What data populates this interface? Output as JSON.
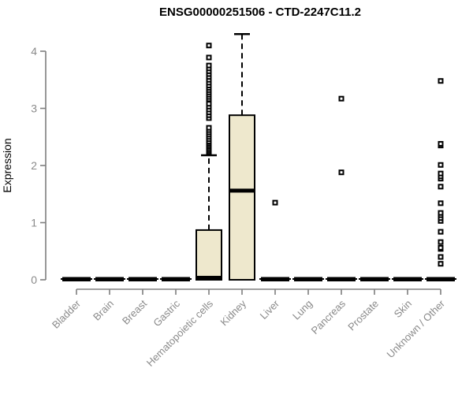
{
  "chart_data": {
    "type": "boxplot",
    "title": "ENSG00000251506 - CTD-2247C11.2",
    "ylabel": "Expression",
    "xlabel": "",
    "ylim": [
      0,
      4
    ],
    "y_ticks": [
      0,
      1,
      2,
      3,
      4
    ],
    "grid": false,
    "legend": "none",
    "categories": [
      "Bladder",
      "Brain",
      "Breast",
      "Gastric",
      "Hematopoietic cells",
      "Kidney",
      "Liver",
      "Lung",
      "Pancreas",
      "Prostate",
      "Skin",
      "Unknown / Other"
    ],
    "boxes": [
      {
        "category": "Bladder",
        "whisker_low": 0,
        "q1": 0,
        "median": 0,
        "q3": 0,
        "whisker_high": 0,
        "outliers": []
      },
      {
        "category": "Brain",
        "whisker_low": 0,
        "q1": 0,
        "median": 0,
        "q3": 0,
        "whisker_high": 0,
        "outliers": []
      },
      {
        "category": "Breast",
        "whisker_low": 0,
        "q1": 0,
        "median": 0,
        "q3": 0,
        "whisker_high": 0,
        "outliers": []
      },
      {
        "category": "Gastric",
        "whisker_low": 0,
        "q1": 0,
        "median": 0,
        "q3": 0,
        "whisker_high": 0,
        "outliers": []
      },
      {
        "category": "Hematopoietic cells",
        "whisker_low": 0,
        "q1": 0,
        "median": 0,
        "q3": 0.87,
        "whisker_high": 2.18,
        "outliers": [
          2.24,
          2.27,
          2.3,
          2.33,
          2.36,
          2.39,
          2.42,
          2.46,
          2.5,
          2.54,
          2.58,
          2.62,
          2.66,
          2.83,
          2.88,
          2.93,
          2.98,
          3.03,
          3.08,
          3.16,
          3.2,
          3.24,
          3.28,
          3.32,
          3.36,
          3.4,
          3.45,
          3.5,
          3.55,
          3.6,
          3.65,
          3.7,
          3.75,
          3.89,
          4.1
        ]
      },
      {
        "category": "Kidney",
        "whisker_low": 0,
        "q1": 0,
        "median": 1.56,
        "q3": 2.88,
        "whisker_high": 4.3,
        "outliers": []
      },
      {
        "category": "Liver",
        "whisker_low": 0,
        "q1": 0,
        "median": 0,
        "q3": 0,
        "whisker_high": 0,
        "outliers": [
          1.35
        ]
      },
      {
        "category": "Lung",
        "whisker_low": 0,
        "q1": 0,
        "median": 0,
        "q3": 0,
        "whisker_high": 0,
        "outliers": []
      },
      {
        "category": "Pancreas",
        "whisker_low": 0,
        "q1": 0,
        "median": 0,
        "q3": 0,
        "whisker_high": 0,
        "outliers": [
          1.88,
          3.17
        ]
      },
      {
        "category": "Prostate",
        "whisker_low": 0,
        "q1": 0,
        "median": 0,
        "q3": 0,
        "whisker_high": 0,
        "outliers": []
      },
      {
        "category": "Skin",
        "whisker_low": 0,
        "q1": 0,
        "median": 0,
        "q3": 0,
        "whisker_high": 0,
        "outliers": []
      },
      {
        "category": "Unknown / Other",
        "whisker_low": 0,
        "q1": 0,
        "median": 0,
        "q3": 0,
        "whisker_high": 0,
        "outliers": [
          0.28,
          0.4,
          0.54,
          0.56,
          0.66,
          0.84,
          1.03,
          1.08,
          1.13,
          1.17,
          1.34,
          1.63,
          1.77,
          1.81,
          1.86,
          2.01,
          2.35,
          2.38,
          3.48
        ]
      }
    ],
    "style": {
      "box_fill": "#EEE8CD",
      "box_border": "#000000",
      "median_color": "#000000",
      "whisker_color": "#000000",
      "outlier_color": "#000000",
      "axis_color": "#7f7f7f",
      "label_color": "#8a8a8a",
      "title_color": "#000000",
      "background": "#ffffff"
    }
  }
}
